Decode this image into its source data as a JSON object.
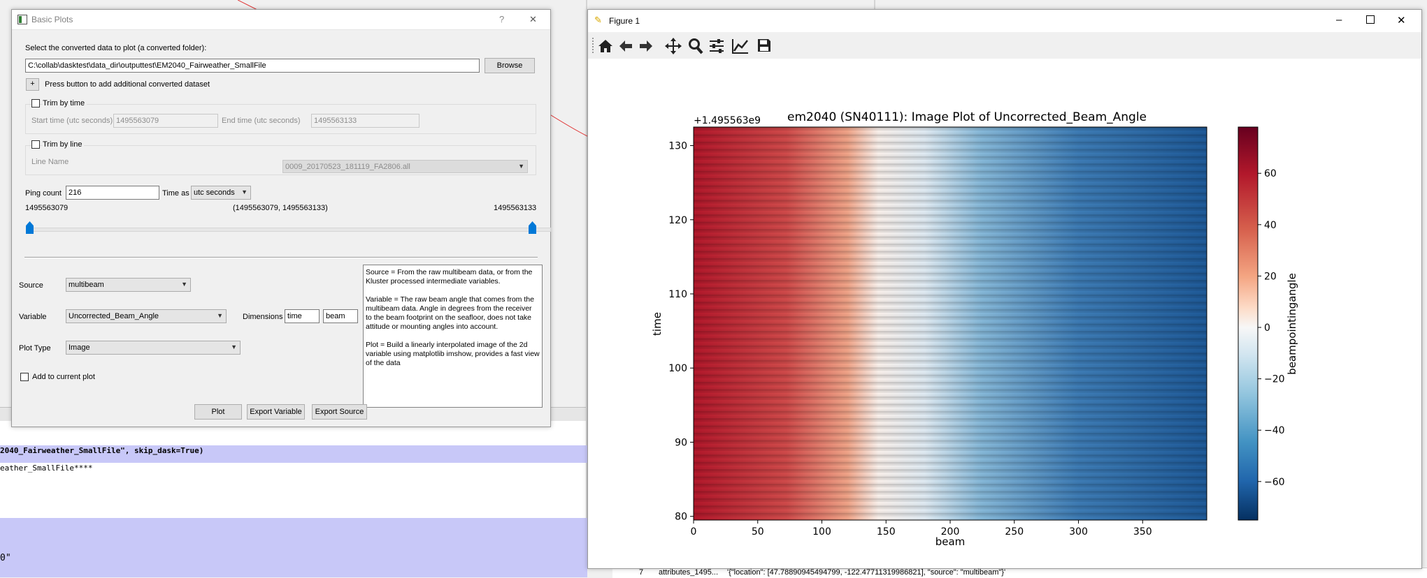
{
  "console": {
    "line1": "2040_Fairweather_SmallFile\", skip_dask=True)",
    "line2": "eather_SmallFile****",
    "line3": "0\"",
    "table_row_index": "7",
    "table_row_key": "attributes_1495...",
    "table_row_value": "'{\"location\": [47.78890945494799, -122.47711319986821], \"source\": \"multibeam\"}'"
  },
  "dialog": {
    "title": "Basic Plots",
    "help_button": "?",
    "close_button": "✕",
    "select_label": "Select the converted data to plot (a converted folder):",
    "path_value": "C:\\collab\\dasktest\\data_dir\\outputtest\\EM2040_Fairweather_SmallFile",
    "browse_label": "Browse",
    "add_button": "+",
    "add_label": "Press button to add additional converted dataset",
    "trim_time": {
      "label": "Trim by time",
      "start_label": "Start time (utc seconds)",
      "start_value": "1495563079",
      "end_label": "End time (utc seconds)",
      "end_value": "1495563133"
    },
    "trim_line": {
      "label": "Trim by line",
      "line_name_label": "Line Name",
      "line_name_value": "0009_20170523_181119_FA2806.all"
    },
    "ping_count_label": "Ping count",
    "ping_count_value": "216",
    "time_as_label": "Time as",
    "time_as_value": "utc seconds",
    "slider": {
      "min_label": "1495563079",
      "range_label": "(1495563079, 1495563133)",
      "max_label": "1495563133"
    },
    "source_label": "Source",
    "source_value": "multibeam",
    "variable_label": "Variable",
    "variable_value": "Uncorrected_Beam_Angle",
    "dimensions_label": "Dimensions",
    "dim1": "time",
    "dim2": "beam",
    "plot_type_label": "Plot Type",
    "plot_type_value": "Image",
    "add_current_label": "Add to current plot",
    "help_text": {
      "p1": "Source = From the raw multibeam data, or from the Kluster processed intermediate variables.",
      "p2": "Variable = The raw beam angle that comes from the multibeam data.  Angle in degrees from the receiver to the beam footprint on the seafloor, does not take attitude or mounting angles into account.",
      "p3": "Plot = Build a linearly interpolated image of the 2d variable using matplotlib imshow, provides a fast view of the data"
    },
    "plot_button": "Plot",
    "export_variable_button": "Export Variable",
    "export_source_button": "Export Source"
  },
  "figure": {
    "window_title": "Figure 1",
    "toolbar_icons": [
      "home-icon",
      "back-arrow-icon",
      "forward-arrow-icon",
      "pan-icon",
      "zoom-icon",
      "configure-subplots-icon",
      "edit-axis-icon",
      "save-icon"
    ]
  },
  "chart_data": {
    "type": "heatmap",
    "title": "em2040 (SN40111): Image Plot of Uncorrected_Beam_Angle",
    "xlabel": "beam",
    "ylabel": "time",
    "offset_text": "+1.495563e9",
    "xlim": [
      0,
      400
    ],
    "ylim": [
      79.5,
      132.5
    ],
    "xticks": [
      "0",
      "50",
      "100",
      "150",
      "200",
      "250",
      "300",
      "350"
    ],
    "xtick_values": [
      0,
      50,
      100,
      150,
      200,
      250,
      300,
      350
    ],
    "yticks": [
      "80",
      "90",
      "100",
      "110",
      "120",
      "130"
    ],
    "ytick_values": [
      80,
      90,
      100,
      110,
      120,
      130
    ],
    "colorbar": {
      "label": "beampointingangle",
      "cmap": "RdBu_r",
      "range": [
        -75,
        78
      ],
      "ticks": [
        "60",
        "40",
        "20",
        "0",
        "−20",
        "−40",
        "−60"
      ],
      "tick_values": [
        60,
        40,
        20,
        0,
        -20,
        -40,
        -60
      ]
    },
    "beam_angle_range": [
      75,
      -75
    ],
    "beams": 400,
    "pings": 216,
    "row_band_pattern": "alternating darker and lighter rows per ping",
    "colors": {
      "cmap_low": "#053061",
      "cmap_mid": "#f7f7f7",
      "cmap_high": "#67001f"
    }
  }
}
